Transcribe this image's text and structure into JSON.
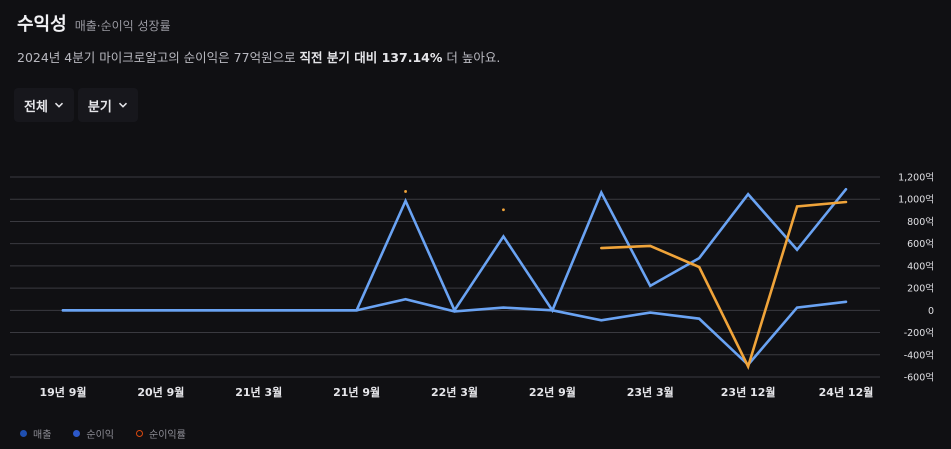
{
  "header": {
    "title": "수익성",
    "subtitle": "매출·순이익 성장률"
  },
  "summary": {
    "prefix": "2024년 4분기 마이크로알고의 순이익은 77억원으로 ",
    "highlight": "직전 분기 대비 137.14%",
    "suffix": " 더 높아요."
  },
  "filters": [
    {
      "label": "전체"
    },
    {
      "label": "분기"
    }
  ],
  "legend": [
    {
      "label": "매출",
      "color": "#1f4fb0",
      "style": "filled"
    },
    {
      "label": "순이익",
      "color": "#2c58c9",
      "style": "filled"
    },
    {
      "label": "순이익률",
      "color": "#d9480f",
      "style": "ring"
    }
  ],
  "chart_data": {
    "type": "line",
    "y_tick_labels": [
      "1,200억",
      "1,000억",
      "800억",
      "600억",
      "400억",
      "200억",
      "0",
      "-200억",
      "-400억",
      "-600억"
    ],
    "y_ticks": [
      1200,
      1000,
      800,
      600,
      400,
      200,
      0,
      -200,
      -400,
      -600
    ],
    "ylim": [
      -600,
      1200
    ],
    "x_points": 17,
    "x_tick_labels": [
      {
        "index": 0,
        "label": "19년 9월"
      },
      {
        "index": 2,
        "label": "20년 9월"
      },
      {
        "index": 4,
        "label": "21년 3월"
      },
      {
        "index": 6,
        "label": "21년 9월"
      },
      {
        "index": 8,
        "label": "22년 3월"
      },
      {
        "index": 10,
        "label": "22년 9월"
      },
      {
        "index": 12,
        "label": "23년 3월"
      },
      {
        "index": 14,
        "label": "23년 12월"
      },
      {
        "index": 16,
        "label": "24년 12월"
      }
    ],
    "grid": true,
    "series": [
      {
        "color": "#6aa3f3",
        "values": [
          0,
          0,
          0,
          0,
          0,
          0,
          0,
          985,
          0,
          665,
          0,
          1060,
          220,
          470,
          1045,
          545,
          1090
        ]
      },
      {
        "color": "#6aa3f3",
        "values": [
          0,
          0,
          0,
          0,
          0,
          0,
          0,
          100,
          -10,
          25,
          0,
          -90,
          -20,
          -75,
          -490,
          25,
          77
        ]
      },
      {
        "color": "#f0a43a",
        "values": [
          null,
          null,
          null,
          null,
          null,
          null,
          null,
          1070,
          null,
          905,
          null,
          560,
          580,
          390,
          -505,
          935,
          975
        ],
        "dots_only": [
          7,
          9
        ]
      }
    ]
  }
}
